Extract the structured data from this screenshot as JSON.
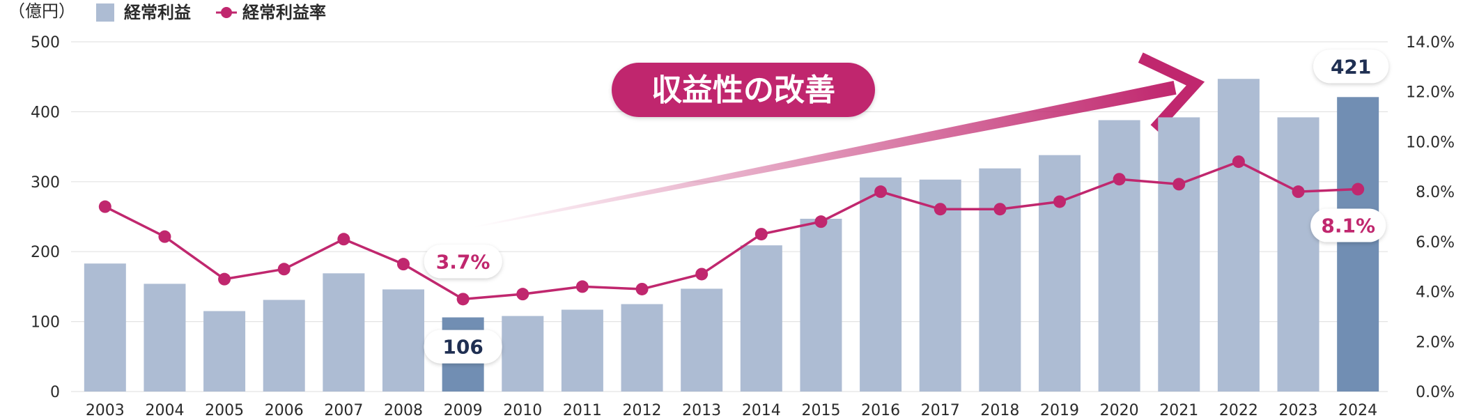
{
  "chart_data": {
    "type": "bar",
    "title": "",
    "y_unit_label": "（億円）",
    "categories": [
      "2003",
      "2004",
      "2005",
      "2006",
      "2007",
      "2008",
      "2009",
      "2010",
      "2011",
      "2012",
      "2013",
      "2014",
      "2015",
      "2016",
      "2017",
      "2018",
      "2019",
      "2020",
      "2021",
      "2022",
      "2023",
      "2024"
    ],
    "series": [
      {
        "name": "経常利益",
        "type": "bar",
        "axis": "left",
        "values": [
          183,
          154,
          115,
          131,
          169,
          146,
          106,
          108,
          117,
          125,
          147,
          209,
          247,
          306,
          303,
          319,
          338,
          388,
          392,
          447,
          392,
          421
        ]
      },
      {
        "name": "経常利益率",
        "type": "line",
        "axis": "right",
        "values": [
          7.4,
          6.2,
          4.5,
          4.9,
          6.1,
          5.1,
          3.7,
          3.9,
          4.2,
          4.1,
          4.7,
          6.3,
          6.8,
          8.0,
          7.3,
          7.3,
          7.6,
          8.5,
          8.3,
          9.2,
          8.0,
          8.1
        ]
      }
    ],
    "highlight_years": [
      "2009",
      "2024"
    ],
    "y_left": {
      "min": 0,
      "max": 500,
      "ticks": [
        "0",
        "100",
        "200",
        "300",
        "400",
        "500"
      ]
    },
    "y_right": {
      "min": 0,
      "max": 14,
      "ticks": [
        "0.0%",
        "2.0%",
        "4.0%",
        "6.0%",
        "8.0%",
        "10.0%",
        "12.0%",
        "14.0%"
      ]
    },
    "annotations": [
      {
        "year": "2009",
        "bar_label": "106",
        "rate_label": "3.7%"
      },
      {
        "year": "2024",
        "bar_label": "421",
        "rate_label": "8.1%"
      }
    ],
    "banner_text": "収益性の改善",
    "legend_position": "top-left"
  },
  "colors": {
    "bar": "#adbcd3",
    "bar_highlight": "#718eb3",
    "line": "#c0276e",
    "grid": "#e3e3e3",
    "callout_text_dark": "#1f2f52",
    "callout_text_accent": "#c0276e",
    "banner_bg": "#c0276e"
  }
}
